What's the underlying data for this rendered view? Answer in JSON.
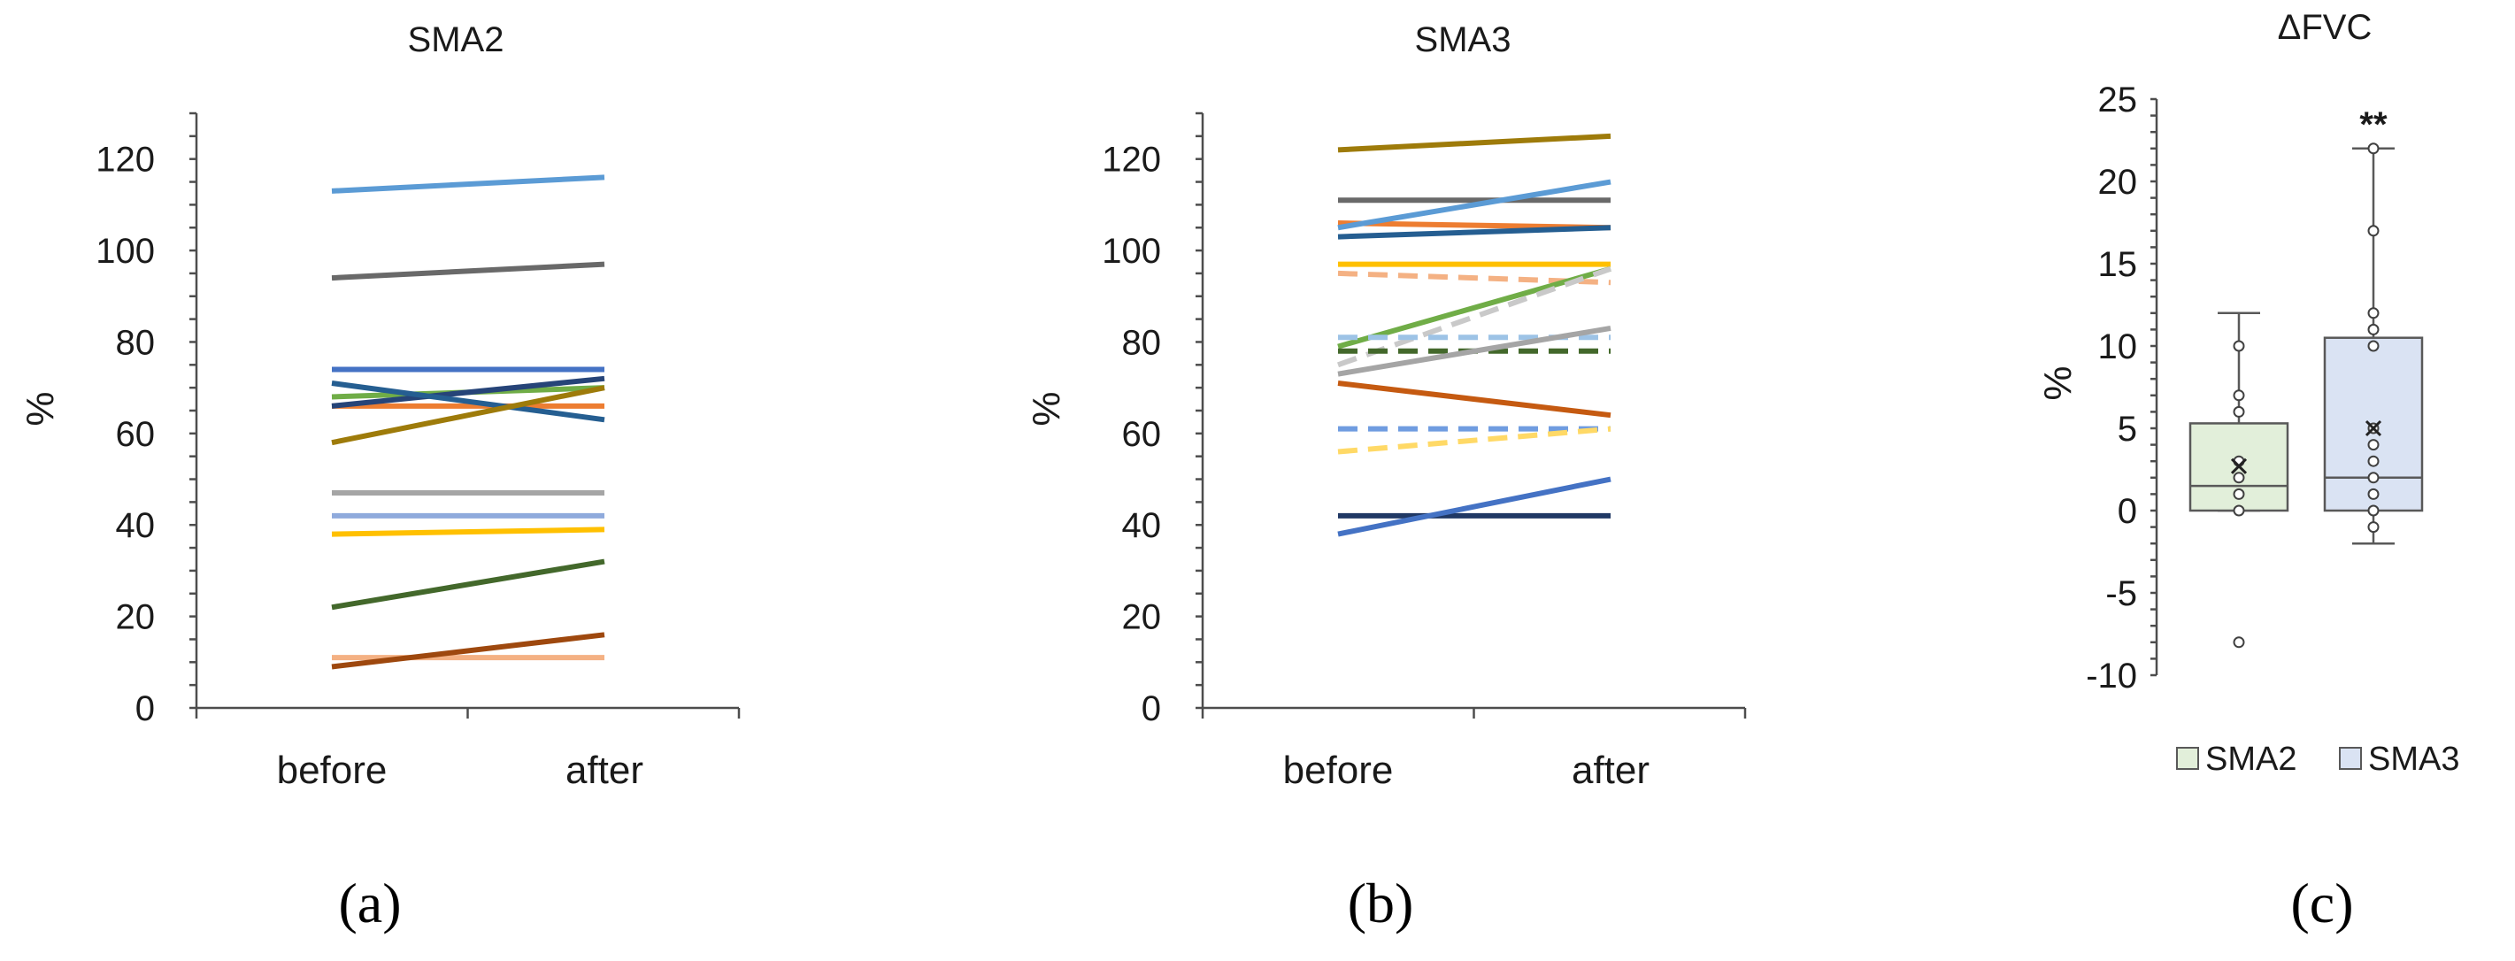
{
  "chart_data": [
    {
      "type": "line",
      "panel_label": "(a)",
      "title": "SMA2",
      "ylabel": "%",
      "categories": [
        "before",
        "after"
      ],
      "ylim": [
        0,
        130
      ],
      "yticks": [
        "0",
        "20",
        "40",
        "60",
        "80",
        "100",
        "120"
      ],
      "series": [
        {
          "values": [
            113,
            116
          ],
          "color": "#5b9bd5",
          "dashed": false
        },
        {
          "values": [
            94,
            97
          ],
          "color": "#696969",
          "dashed": false
        },
        {
          "values": [
            74,
            74
          ],
          "color": "#4472c4",
          "dashed": false
        },
        {
          "values": [
            68,
            70
          ],
          "color": "#70ad47",
          "dashed": false
        },
        {
          "values": [
            66,
            66
          ],
          "color": "#ed7d31",
          "dashed": false
        },
        {
          "values": [
            66,
            72
          ],
          "color": "#264478",
          "dashed": false
        },
        {
          "values": [
            71,
            63
          ],
          "color": "#255e91",
          "dashed": false
        },
        {
          "values": [
            58,
            70
          ],
          "color": "#9e7b0a",
          "dashed": false
        },
        {
          "values": [
            47,
            47
          ],
          "color": "#a5a5a5",
          "dashed": false
        },
        {
          "values": [
            42,
            42
          ],
          "color": "#8faadc",
          "dashed": false
        },
        {
          "values": [
            38,
            39
          ],
          "color": "#ffc000",
          "dashed": false
        },
        {
          "values": [
            22,
            32
          ],
          "color": "#43682b",
          "dashed": false
        },
        {
          "values": [
            11,
            11
          ],
          "color": "#f4b183",
          "dashed": false
        },
        {
          "values": [
            9,
            16
          ],
          "color": "#9e480e",
          "dashed": false
        }
      ]
    },
    {
      "type": "line",
      "panel_label": "(b)",
      "title": "SMA3",
      "ylabel": "%",
      "categories": [
        "before",
        "after"
      ],
      "ylim": [
        0,
        130
      ],
      "yticks": [
        "0",
        "20",
        "40",
        "60",
        "80",
        "100",
        "120"
      ],
      "series": [
        {
          "values": [
            122,
            125
          ],
          "color": "#9e7b0a",
          "dashed": false
        },
        {
          "values": [
            111,
            111
          ],
          "color": "#696969",
          "dashed": false
        },
        {
          "values": [
            106,
            105
          ],
          "color": "#ed7d31",
          "dashed": false
        },
        {
          "values": [
            105,
            115
          ],
          "color": "#5b9bd5",
          "dashed": false
        },
        {
          "values": [
            103,
            105
          ],
          "color": "#255e91",
          "dashed": false
        },
        {
          "values": [
            97,
            97
          ],
          "color": "#ffc000",
          "dashed": false
        },
        {
          "values": [
            95,
            93
          ],
          "color": "#f4b183",
          "dashed": true
        },
        {
          "values": [
            79,
            96
          ],
          "color": "#70ad47",
          "dashed": false
        },
        {
          "values": [
            75,
            96
          ],
          "color": "#c9c9c9",
          "dashed": true
        },
        {
          "values": [
            81,
            81
          ],
          "color": "#9dc3e6",
          "dashed": true
        },
        {
          "values": [
            78,
            78
          ],
          "color": "#43682b",
          "dashed": true
        },
        {
          "values": [
            73,
            83
          ],
          "color": "#a5a5a5",
          "dashed": false
        },
        {
          "values": [
            71,
            64
          ],
          "color": "#c55a11",
          "dashed": false
        },
        {
          "values": [
            61,
            61
          ],
          "color": "#6f9ce0",
          "dashed": true
        },
        {
          "values": [
            56,
            61
          ],
          "color": "#ffd966",
          "dashed": true
        },
        {
          "values": [
            42,
            42
          ],
          "color": "#203864",
          "dashed": false
        },
        {
          "values": [
            38,
            50
          ],
          "color": "#4472c4",
          "dashed": false
        }
      ]
    },
    {
      "type": "box",
      "panel_label": "(c)",
      "title": "ΔFVC",
      "ylabel": "%",
      "ylim": [
        -10,
        25
      ],
      "yticks": [
        "-10",
        "-5",
        "0",
        "5",
        "10",
        "15",
        "20",
        "25"
      ],
      "legend": [
        "SMA2",
        "SMA3"
      ],
      "boxes": [
        {
          "name": "SMA2",
          "fill": "#e2efda",
          "stroke": "#595959",
          "min": 0,
          "q1": 0,
          "median": 1.5,
          "q3": 5.3,
          "max": 12,
          "mean": 2.7,
          "points": [
            10,
            7,
            6,
            3,
            2,
            1,
            0,
            -8
          ],
          "annotation": ""
        },
        {
          "name": "SMA3",
          "fill": "#dae3f3",
          "stroke": "#595959",
          "min": -2,
          "q1": 0,
          "median": 2,
          "q3": 10.5,
          "max": 22,
          "mean": 5,
          "points": [
            22,
            17,
            12,
            11,
            10,
            5,
            4,
            3,
            2,
            1,
            0,
            -1
          ],
          "annotation": "**"
        }
      ]
    }
  ]
}
